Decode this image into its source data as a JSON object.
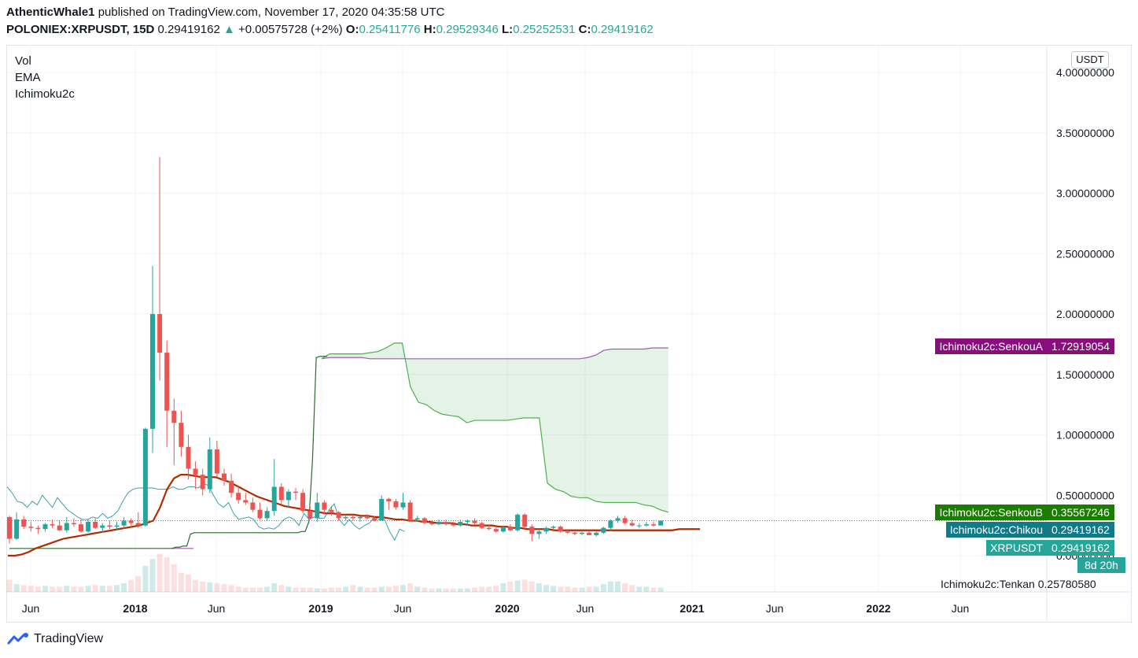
{
  "header": {
    "author": "AthenticWhale1",
    "published_text": "published on TradingView.com, November 17, 2020 04:35:58 UTC",
    "symbol": "POLONIEX:XRPUSDT, 15D",
    "last": "0.29419162",
    "change": "+0.00575728 (+2%)",
    "o_label": "O:",
    "o": "0.25411776",
    "h_label": "H:",
    "h": "0.29529346",
    "l_label": "L:",
    "l": "0.25252531",
    "c_label": "C:",
    "c": "0.29419162"
  },
  "legend": [
    "Vol",
    "EMA",
    "Ichimoku2c"
  ],
  "unit": "USDT",
  "tags": {
    "senkou_a": {
      "name": "Ichimoku2c:SenkouA",
      "value": "1.72919054",
      "color": "#880e80"
    },
    "senkou_b": {
      "name": "Ichimoku2c:SenkouB",
      "value": "0.35567246",
      "color": "#1b7d00"
    },
    "chikou": {
      "name": "Ichimoku2c:Chikou",
      "value": "0.29419162",
      "color": "#127a87"
    },
    "price": {
      "name": "XRPUSDT",
      "value": "0.29419162",
      "color": "#26a69a"
    },
    "countdown": "8d 20h",
    "tenkan": {
      "name": "Ichimoku2c:Tenkan",
      "value": "0.25780580"
    }
  },
  "brand": "TradingView",
  "chart_data": {
    "type": "candlestick",
    "yaxis": {
      "ticks": [
        "4.00000000",
        "3.50000000",
        "3.00000000",
        "2.50000000",
        "2.00000000",
        "1.50000000",
        "1.00000000",
        "0.50000000",
        "0.00000000"
      ],
      "values": [
        4,
        3.5,
        3,
        2.5,
        2,
        1.5,
        1,
        0.5,
        0
      ]
    },
    "xaxis": {
      "labels": [
        "Jun",
        "2018",
        "Jun",
        "2019",
        "Jun",
        "2020",
        "Jun",
        "2021",
        "Jun",
        "2022",
        "Jun"
      ],
      "bold": [
        false,
        true,
        false,
        true,
        false,
        true,
        false,
        true,
        false,
        true,
        false
      ]
    },
    "candles": [
      [
        0.32,
        0.33,
        0.1,
        0.14
      ],
      [
        0.14,
        0.36,
        0.13,
        0.3
      ],
      [
        0.3,
        0.33,
        0.22,
        0.24
      ],
      [
        0.24,
        0.28,
        0.2,
        0.23
      ],
      [
        0.23,
        0.25,
        0.18,
        0.22
      ],
      [
        0.22,
        0.27,
        0.2,
        0.26
      ],
      [
        0.26,
        0.3,
        0.23,
        0.25
      ],
      [
        0.25,
        0.29,
        0.2,
        0.21
      ],
      [
        0.21,
        0.32,
        0.19,
        0.27
      ],
      [
        0.27,
        0.31,
        0.24,
        0.26
      ],
      [
        0.26,
        0.3,
        0.19,
        0.2
      ],
      [
        0.2,
        0.3,
        0.19,
        0.28
      ],
      [
        0.28,
        0.31,
        0.22,
        0.23
      ],
      [
        0.23,
        0.27,
        0.19,
        0.25
      ],
      [
        0.25,
        0.29,
        0.22,
        0.24
      ],
      [
        0.24,
        0.28,
        0.21,
        0.25
      ],
      [
        0.25,
        0.32,
        0.22,
        0.29
      ],
      [
        0.29,
        0.31,
        0.25,
        0.27
      ],
      [
        0.27,
        0.36,
        0.23,
        0.25
      ],
      [
        0.25,
        1.06,
        0.24,
        1.05
      ],
      [
        1.05,
        2.4,
        0.85,
        2.0
      ],
      [
        2.0,
        3.3,
        1.45,
        1.68
      ],
      [
        1.68,
        1.78,
        0.9,
        1.2
      ],
      [
        1.2,
        1.3,
        0.75,
        1.1
      ],
      [
        1.1,
        1.2,
        0.82,
        0.9
      ],
      [
        0.9,
        1.0,
        0.63,
        0.72
      ],
      [
        0.72,
        0.78,
        0.55,
        0.67
      ],
      [
        0.67,
        0.72,
        0.5,
        0.55
      ],
      [
        0.55,
        0.98,
        0.52,
        0.88
      ],
      [
        0.88,
        0.95,
        0.65,
        0.68
      ],
      [
        0.68,
        0.72,
        0.58,
        0.62
      ],
      [
        0.62,
        0.68,
        0.48,
        0.52
      ],
      [
        0.52,
        0.58,
        0.43,
        0.46
      ],
      [
        0.46,
        0.52,
        0.42,
        0.44
      ],
      [
        0.44,
        0.48,
        0.36,
        0.38
      ],
      [
        0.38,
        0.44,
        0.3,
        0.31
      ],
      [
        0.31,
        0.4,
        0.29,
        0.37
      ],
      [
        0.37,
        0.8,
        0.33,
        0.57
      ],
      [
        0.57,
        0.6,
        0.42,
        0.46
      ],
      [
        0.46,
        0.55,
        0.4,
        0.53
      ],
      [
        0.53,
        0.56,
        0.46,
        0.52
      ],
      [
        0.52,
        0.55,
        0.35,
        0.37
      ],
      [
        0.37,
        0.42,
        0.3,
        0.31
      ],
      [
        0.31,
        0.52,
        0.28,
        0.44
      ],
      [
        0.44,
        0.46,
        0.34,
        0.38
      ],
      [
        0.38,
        0.41,
        0.33,
        0.36
      ],
      [
        0.36,
        0.37,
        0.29,
        0.31
      ],
      [
        0.31,
        0.34,
        0.29,
        0.32
      ],
      [
        0.32,
        0.34,
        0.29,
        0.31
      ],
      [
        0.31,
        0.33,
        0.28,
        0.32
      ],
      [
        0.32,
        0.34,
        0.3,
        0.31
      ],
      [
        0.31,
        0.33,
        0.28,
        0.29
      ],
      [
        0.29,
        0.5,
        0.29,
        0.47
      ],
      [
        0.47,
        0.48,
        0.38,
        0.45
      ],
      [
        0.45,
        0.47,
        0.38,
        0.4
      ],
      [
        0.4,
        0.52,
        0.38,
        0.44
      ],
      [
        0.44,
        0.46,
        0.28,
        0.3
      ],
      [
        0.3,
        0.33,
        0.28,
        0.31
      ],
      [
        0.31,
        0.32,
        0.26,
        0.27
      ],
      [
        0.27,
        0.29,
        0.25,
        0.26
      ],
      [
        0.26,
        0.3,
        0.25,
        0.28
      ],
      [
        0.28,
        0.3,
        0.25,
        0.26
      ],
      [
        0.26,
        0.28,
        0.24,
        0.25
      ],
      [
        0.25,
        0.3,
        0.24,
        0.28
      ],
      [
        0.28,
        0.3,
        0.25,
        0.29
      ],
      [
        0.29,
        0.31,
        0.26,
        0.27
      ],
      [
        0.27,
        0.28,
        0.22,
        0.23
      ],
      [
        0.23,
        0.25,
        0.21,
        0.22
      ],
      [
        0.22,
        0.24,
        0.19,
        0.2
      ],
      [
        0.2,
        0.25,
        0.19,
        0.24
      ],
      [
        0.24,
        0.26,
        0.2,
        0.21
      ],
      [
        0.21,
        0.35,
        0.2,
        0.34
      ],
      [
        0.34,
        0.35,
        0.22,
        0.24
      ],
      [
        0.24,
        0.26,
        0.12,
        0.18
      ],
      [
        0.18,
        0.22,
        0.14,
        0.2
      ],
      [
        0.2,
        0.24,
        0.18,
        0.23
      ],
      [
        0.23,
        0.25,
        0.2,
        0.24
      ],
      [
        0.24,
        0.25,
        0.19,
        0.2
      ],
      [
        0.2,
        0.22,
        0.18,
        0.19
      ],
      [
        0.19,
        0.21,
        0.17,
        0.18
      ],
      [
        0.18,
        0.2,
        0.17,
        0.19
      ],
      [
        0.19,
        0.21,
        0.17,
        0.17
      ],
      [
        0.17,
        0.2,
        0.16,
        0.19
      ],
      [
        0.19,
        0.24,
        0.18,
        0.23
      ],
      [
        0.23,
        0.3,
        0.21,
        0.29
      ],
      [
        0.29,
        0.33,
        0.27,
        0.31
      ],
      [
        0.31,
        0.33,
        0.26,
        0.27
      ],
      [
        0.27,
        0.3,
        0.24,
        0.25
      ],
      [
        0.25,
        0.27,
        0.23,
        0.25
      ],
      [
        0.25,
        0.28,
        0.24,
        0.26
      ],
      [
        0.26,
        0.28,
        0.24,
        0.25
      ],
      [
        0.25,
        0.29,
        0.25,
        0.29
      ]
    ],
    "volume": [
      14,
      9,
      8,
      7,
      6,
      7,
      6,
      6,
      7,
      6,
      6,
      7,
      8,
      7,
      7,
      8,
      10,
      14,
      18,
      30,
      38,
      44,
      40,
      32,
      22,
      20,
      14,
      12,
      11,
      10,
      9,
      8,
      6,
      5,
      5,
      5,
      6,
      10,
      8,
      6,
      5,
      5,
      5,
      4,
      4,
      5,
      5,
      6,
      8,
      6,
      5,
      5,
      6,
      6,
      7,
      8,
      10,
      6,
      5,
      4,
      4,
      4,
      4,
      4,
      4,
      5,
      6,
      6,
      7,
      10,
      12,
      13,
      14,
      12,
      10,
      8,
      7,
      6,
      6,
      5,
      5,
      6,
      6,
      9,
      12,
      12,
      10,
      8,
      6,
      6,
      5,
      5
    ],
    "ema": [
      0.0,
      0.0,
      0.01,
      0.03,
      0.06,
      0.08,
      0.1,
      0.12,
      0.14,
      0.15,
      0.16,
      0.17,
      0.18,
      0.19,
      0.2,
      0.21,
      0.22,
      0.23,
      0.24,
      0.25,
      0.27,
      0.29,
      0.4,
      0.55,
      0.64,
      0.67,
      0.67,
      0.66,
      0.65,
      0.65,
      0.65,
      0.63,
      0.61,
      0.58,
      0.55,
      0.52,
      0.49,
      0.47,
      0.45,
      0.43,
      0.41,
      0.4,
      0.39,
      0.38,
      0.37,
      0.36,
      0.35,
      0.35,
      0.34,
      0.34,
      0.34,
      0.33,
      0.33,
      0.32,
      0.32,
      0.31,
      0.3,
      0.3,
      0.29,
      0.29,
      0.28,
      0.28,
      0.27,
      0.27,
      0.27,
      0.26,
      0.26,
      0.25,
      0.25,
      0.25,
      0.25,
      0.24,
      0.24,
      0.23,
      0.23,
      0.22,
      0.22,
      0.22,
      0.22,
      0.21,
      0.21,
      0.21,
      0.21,
      0.21,
      0.21,
      0.21,
      0.21,
      0.21,
      0.21,
      0.21,
      0.21,
      0.21,
      0.21,
      0.21,
      0.21,
      0.21,
      0.21,
      0.22,
      0.22,
      0.22,
      0.22
    ],
    "senkou_a_cloud": [
      1.63,
      1.64,
      1.64,
      1.64,
      1.64,
      1.64,
      1.63,
      1.63,
      1.63,
      1.63,
      1.63,
      1.63,
      1.63,
      1.63,
      1.63,
      1.63,
      1.63,
      1.63,
      1.63,
      1.63,
      1.63,
      1.63,
      1.63,
      1.63,
      1.63,
      1.63,
      1.63,
      1.63,
      1.63,
      1.63,
      1.63,
      1.63,
      1.63,
      1.64,
      1.66,
      1.7,
      1.71,
      1.71,
      1.71,
      1.71,
      1.71,
      1.72,
      1.72,
      1.72
    ],
    "senkou_b_cloud": [
      1.63,
      1.67,
      1.67,
      1.67,
      1.67,
      1.67,
      1.68,
      1.69,
      1.72,
      1.76,
      1.76,
      1.4,
      1.27,
      1.25,
      1.2,
      1.17,
      1.16,
      1.15,
      1.1,
      1.12,
      1.12,
      1.12,
      1.12,
      1.12,
      1.13,
      1.14,
      1.14,
      1.14,
      0.6,
      0.55,
      0.53,
      0.49,
      0.48,
      0.48,
      0.45,
      0.44,
      0.44,
      0.44,
      0.44,
      0.44,
      0.42,
      0.41,
      0.38,
      0.36
    ],
    "chikou": [
      0.57,
      0.52,
      0.45,
      0.44,
      0.4,
      0.45,
      0.42,
      0.5,
      0.45,
      0.4,
      0.48,
      0.43,
      0.38,
      0.35,
      0.32,
      0.3,
      0.3,
      0.32,
      0.31,
      0.35,
      0.31,
      0.33,
      0.37,
      0.45,
      0.52,
      0.55,
      0.56,
      0.56,
      0.56,
      0.56,
      0.55,
      0.55,
      0.55,
      0.57,
      0.55,
      0.55,
      0.57,
      0.57,
      0.56,
      0.6,
      0.58,
      0.5,
      0.43,
      0.4,
      0.44,
      0.35,
      0.3,
      0.31,
      0.32,
      0.3,
      0.24,
      0.22,
      0.23,
      0.22,
      0.25,
      0.3,
      0.32,
      0.3,
      0.25,
      0.35,
      0.3,
      0.32,
      0.31,
      0.31,
      0.38,
      0.43,
      0.3,
      0.25,
      0.3,
      0.25,
      0.22,
      0.25,
      0.27,
      0.32,
      0.3,
      0.3,
      0.2,
      0.13,
      0.22,
      0.2
    ],
    "kijun": [
      0.06,
      0.06,
      0.06,
      0.06,
      0.06,
      0.06,
      0.06,
      0.06,
      0.06,
      0.06,
      0.06,
      0.06,
      0.06,
      0.06,
      0.06,
      0.06,
      0.06,
      0.06,
      0.06,
      0.06,
      0.06,
      0.06,
      0.06,
      0.06,
      0.06,
      0.06,
      0.06,
      0.06,
      0.06,
      0.06,
      0.06,
      0.06,
      0.06,
      0.06,
      0.06,
      0.06,
      0.06,
      0.06,
      0.06,
      0.06,
      0.06,
      0.06,
      0.06,
      0.06,
      0.06,
      0.07,
      0.07,
      0.08,
      0.08,
      0.18,
      0.19,
      0.19,
      0.19,
      0.19,
      0.19,
      0.19,
      0.19,
      0.19,
      0.19,
      0.19,
      0.19,
      0.19,
      0.19,
      0.19,
      0.19,
      0.19,
      0.19,
      0.19,
      0.19,
      0.19,
      0.19,
      0.19,
      0.19,
      0.19,
      0.19,
      0.19,
      0.19,
      0.19,
      0.19,
      0.2,
      0.2,
      0.28,
      0.8,
      1.64,
      1.65,
      1.65,
      1.65
    ],
    "tenkan_prefix": [
      0.06,
      0.06
    ]
  }
}
